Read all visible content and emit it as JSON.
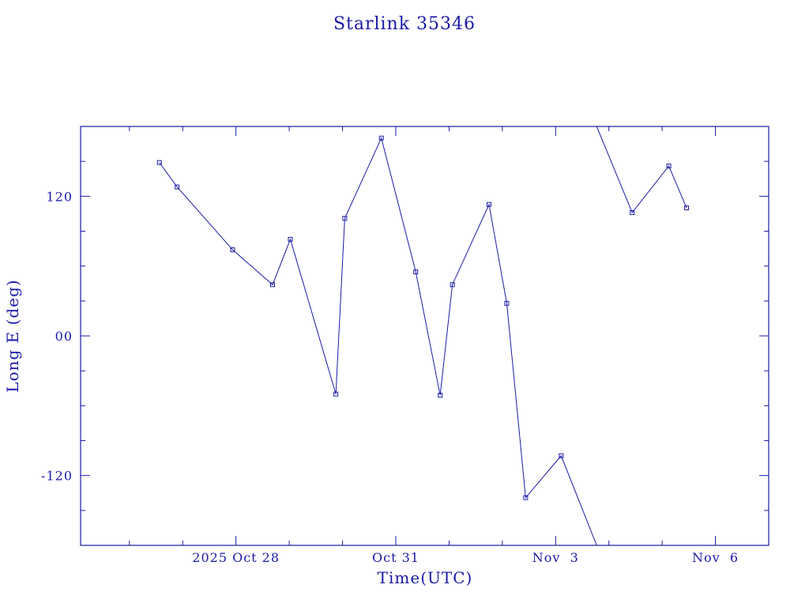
{
  "chart_data": {
    "type": "line",
    "title": "Starlink 35346",
    "xlabel": "Time(UTC)",
    "ylabel": "Long E (deg)",
    "x_tick_labels": [
      "2025 Oct 28",
      "Oct 31",
      "Nov  3",
      "Nov  6"
    ],
    "x_tick_dates": [
      "2025-10-28",
      "2025-10-31",
      "2025-11-03",
      "2025-11-06"
    ],
    "y_tick_labels": [
      "120",
      "00",
      "-120"
    ],
    "y_tick_values": [
      120,
      0,
      -120
    ],
    "xlim": [
      "2025-10-25T02:00",
      "2025-11-07T00:00"
    ],
    "ylim": [
      -180,
      180
    ],
    "grid": false,
    "series": [
      {
        "values": [
          [
            "2025-10-26T13:30",
            149
          ],
          [
            "2025-10-26T21:30",
            128
          ],
          [
            "2025-10-27T22:30",
            74
          ],
          [
            "2025-10-28T16:30",
            44
          ],
          [
            "2025-10-29T00:30",
            83
          ],
          [
            "2025-10-29T21:00",
            -50
          ],
          [
            "2025-10-30T01:00",
            101
          ],
          [
            "2025-10-30T17:30",
            170
          ],
          [
            "2025-10-31T09:00",
            55
          ],
          [
            "2025-10-31T20:00",
            -51
          ],
          [
            "2025-11-01T01:30",
            44
          ],
          [
            "2025-11-01T18:00",
            113
          ],
          [
            "2025-11-02T02:00",
            28
          ],
          [
            "2025-11-02T10:30",
            -139
          ],
          [
            "2025-11-03T02:30",
            -103
          ],
          [
            "2025-11-03T18:30",
            -180
          ]
        ]
      },
      {
        "values": [
          [
            "2025-11-03T18:30",
            180
          ],
          [
            "2025-11-04T10:30",
            106
          ],
          [
            "2025-11-05T03:00",
            146
          ],
          [
            "2025-11-05T11:00",
            110
          ]
        ]
      }
    ]
  }
}
